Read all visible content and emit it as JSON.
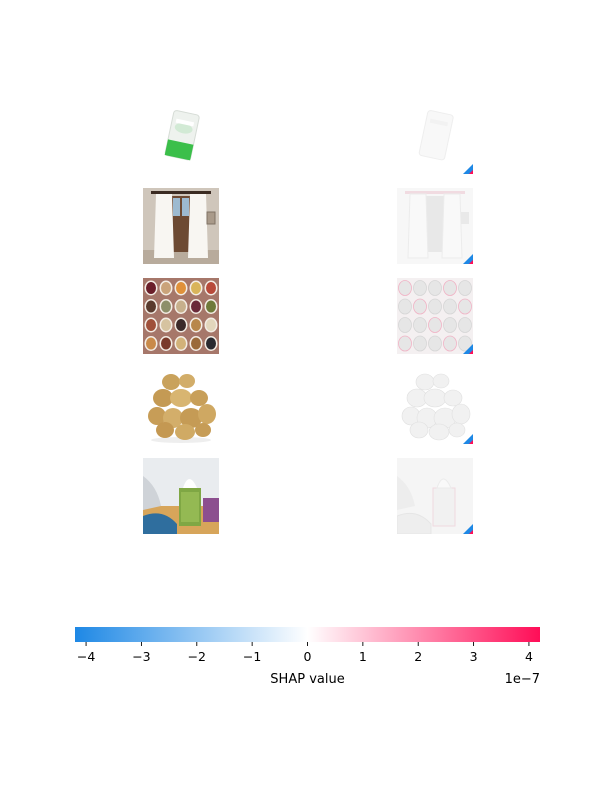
{
  "chart_data": {
    "type": "heatmap",
    "title": "",
    "rows": [
      {
        "image": "wet-wipes-package-image",
        "shap": "wet-wipes-shap-overlay"
      },
      {
        "image": "curtains-window-image",
        "shap": "curtains-shap-overlay"
      },
      {
        "image": "spice-bowls-grid-image",
        "shap": "spice-bowls-shap-overlay"
      },
      {
        "image": "potato-pile-image",
        "shap": "potato-shap-overlay"
      },
      {
        "image": "tissue-box-image",
        "shap": "tissue-box-shap-overlay"
      }
    ],
    "colorbar": {
      "label": "SHAP value",
      "min": -4.2,
      "max": 4.2,
      "ticks": [
        -4,
        -3,
        -2,
        -1,
        0,
        1,
        2,
        3,
        4
      ],
      "tick_labels": [
        "−4",
        "−3",
        "−2",
        "−1",
        "0",
        "1",
        "2",
        "3",
        "4"
      ],
      "offset_text": "1e−7",
      "colors": {
        "negative": "#1e88e5",
        "zero": "#ffffff",
        "positive": "#ff0d57"
      }
    }
  }
}
